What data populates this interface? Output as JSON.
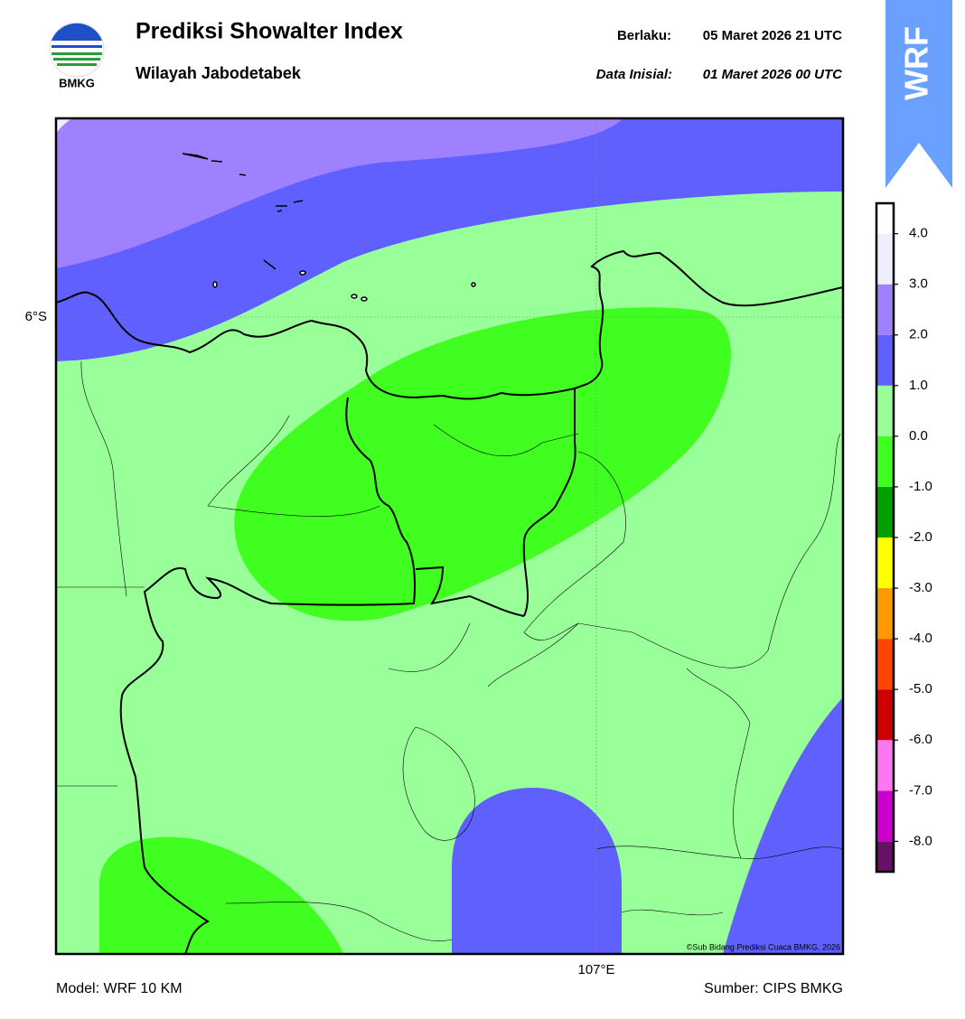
{
  "header": {
    "title": "Prediksi Showalter Index",
    "subtitle": "Wilayah Jabodetabek",
    "valid_label": "Berlaku:",
    "valid_time": "05 Maret 2026 21 UTC",
    "init_label": "Data Inisial:",
    "init_time": "01 Maret 2026 00 UTC",
    "logo_text": "BMKG",
    "badge": "WRF"
  },
  "map": {
    "lat_label": "6°S",
    "lon_label": "107°E",
    "copyright": "©Sub Bidang Prediksi Cuaca BMKG, 2026"
  },
  "colorbar": {
    "lim": [
      -8.6,
      4.6
    ],
    "bounds": [
      -8.6,
      -8,
      -7,
      -6,
      -5,
      -4,
      -3,
      -2,
      -1,
      0,
      1,
      2,
      3,
      4,
      4.6
    ],
    "colors": [
      "#661166",
      "#cc00cc",
      "#ff77ee",
      "#cc0000",
      "#ff4400",
      "#ff9900",
      "#ffff00",
      "#00a000",
      "#40ff20",
      "#99ff99",
      "#6060ff",
      "#9f80ff",
      "#eeeeff",
      "#ffffff"
    ],
    "ticks": [
      {
        "value": 4,
        "label": "4.0"
      },
      {
        "value": 3,
        "label": "3.0"
      },
      {
        "value": 2,
        "label": "2.0"
      },
      {
        "value": 1,
        "label": "1.0"
      },
      {
        "value": 0,
        "label": "0.0"
      },
      {
        "value": -1,
        "label": "-1.0"
      },
      {
        "value": -2,
        "label": "-2.0"
      },
      {
        "value": -3,
        "label": "-3.0"
      },
      {
        "value": -4,
        "label": "-4.0"
      },
      {
        "value": -5,
        "label": "-5.0"
      },
      {
        "value": -6,
        "label": "-6.0"
      },
      {
        "value": -7,
        "label": "-7.0"
      },
      {
        "value": -8,
        "label": "-8.0"
      }
    ]
  },
  "footer": {
    "model": "Model: WRF 10 KM",
    "source": "Sumber: CIPS BMKG"
  }
}
